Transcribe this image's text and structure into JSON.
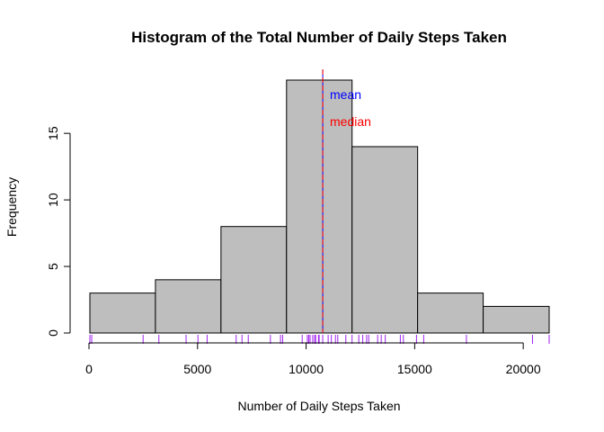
{
  "chart_data": {
    "type": "bar",
    "title": "Histogram of the Total Number of Daily Steps Taken",
    "xlabel": "Number of Daily Steps Taken",
    "ylabel": "Frequency",
    "xlim": [
      0,
      21194
    ],
    "ylim": [
      0,
      19
    ],
    "x_ticks": [
      0,
      5000,
      10000,
      15000,
      20000
    ],
    "y_ticks": [
      0,
      5,
      10,
      15
    ],
    "bins": [
      {
        "start": 41,
        "end": 3060,
        "count": 3
      },
      {
        "start": 3060,
        "end": 6079,
        "count": 4
      },
      {
        "start": 6079,
        "end": 9098,
        "count": 8
      },
      {
        "start": 9098,
        "end": 12117,
        "count": 19
      },
      {
        "start": 12117,
        "end": 15136,
        "count": 14
      },
      {
        "start": 15136,
        "end": 18155,
        "count": 3
      },
      {
        "start": 18155,
        "end": 21194,
        "count": 2
      }
    ],
    "rug": [
      41,
      126,
      2492,
      3219,
      4472,
      5018,
      5441,
      6778,
      7047,
      7336,
      8355,
      8821,
      8918,
      9819,
      10056,
      10119,
      10183,
      10304,
      10395,
      10439,
      10571,
      10600,
      10765,
      11015,
      11162,
      11352,
      11458,
      11829,
      12116,
      12426,
      12608,
      12787,
      12883,
      13294,
      13460,
      13646,
      14339,
      14478,
      15084,
      15414,
      17382,
      20427,
      21194
    ],
    "mean": 10766,
    "median": 10765,
    "annotations": [
      {
        "text": "mean",
        "color": "#0000ff"
      },
      {
        "text": "median",
        "color": "#ff0000"
      }
    ],
    "bar_fill": "#bebebe",
    "rug_color": "#a020f0",
    "grid": false,
    "legend": "none"
  }
}
